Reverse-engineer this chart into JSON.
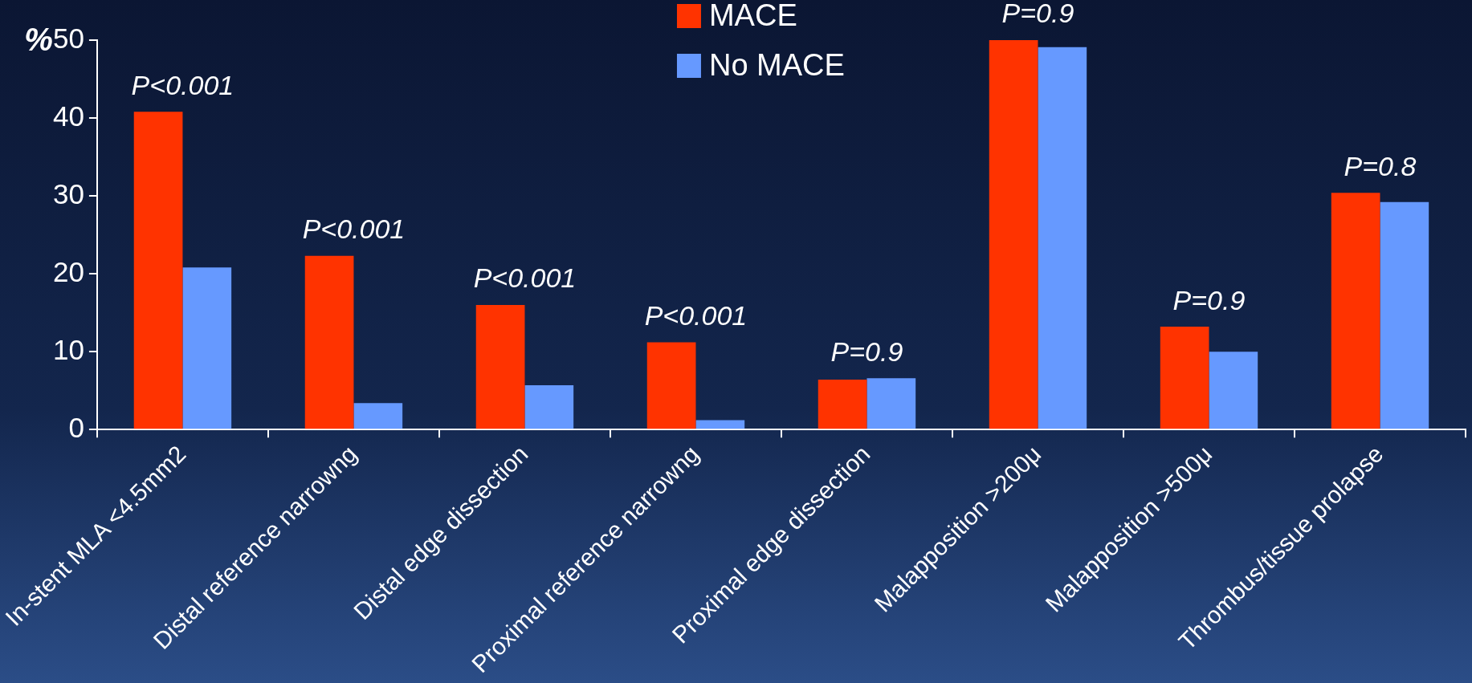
{
  "chart_data": {
    "type": "bar",
    "ylabel": "%",
    "categories": [
      "In-stent MLA <4.5mm2",
      "Distal reference narrowng",
      "Distal edge dissection",
      "Proximal reference narrowng",
      "Proximal edge dissection",
      "Malapposition >200μ",
      "Malapposition >500μ",
      "Thrombus/tissue prolapse"
    ],
    "series": [
      {
        "name": "MACE",
        "color": "#ff3300",
        "values": [
          40.8,
          22.3,
          16,
          11.2,
          6.4,
          50,
          13.2,
          30.4
        ]
      },
      {
        "name": "No MACE",
        "color": "#6699ff",
        "values": [
          20.8,
          3.4,
          5.7,
          1.2,
          6.6,
          49.1,
          10,
          29.2
        ]
      }
    ],
    "ylim": [
      0,
      50
    ],
    "yticks": [
      0,
      10,
      20,
      30,
      40,
      50
    ],
    "grid": false,
    "legend": "top",
    "annotations": [
      {
        "text": "P<0.001",
        "x": "In-stent MLA <4.5mm2",
        "y": 40.8
      },
      {
        "text": "P<0.001",
        "x": "Distal reference narrowng",
        "y": 22.3
      },
      {
        "text": "P<0.001",
        "x": "Distal edge dissection",
        "y": 16
      },
      {
        "text": "P<0.001",
        "x": "Proximal reference narrowng",
        "y": 11.2
      },
      {
        "text": "P=0.9",
        "x": "Proximal edge dissection",
        "y": 6.6
      },
      {
        "text": "P=0.9",
        "x": "Malapposition >200μ",
        "y": 50
      },
      {
        "text": "P=0.9",
        "x": "Malapposition >500μ",
        "y": 13.2
      },
      {
        "text": "P=0.8",
        "x": "Thrombus/tissue prolapse",
        "y": 30.4
      }
    ]
  }
}
